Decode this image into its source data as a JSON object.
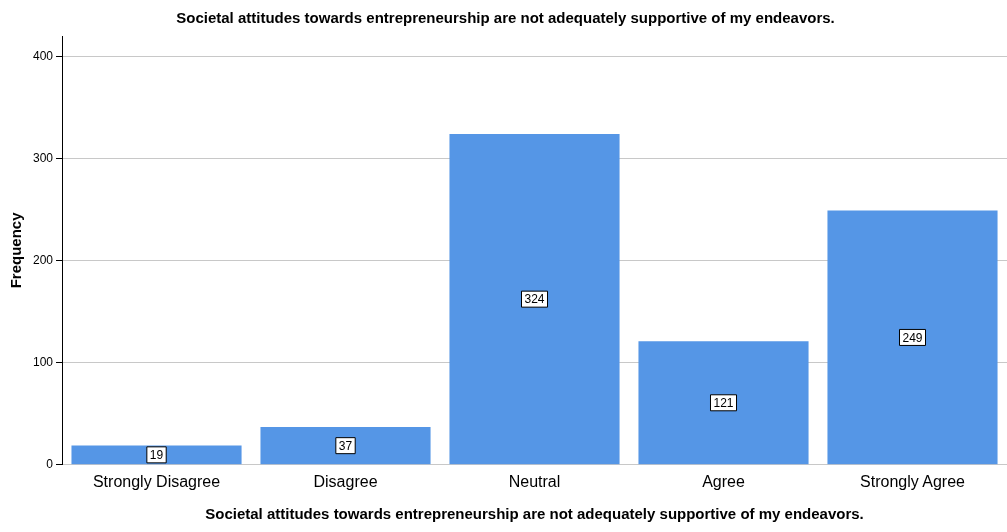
{
  "chart_data": {
    "type": "bar",
    "title": "Societal attitudes towards entrepreneurship are not adequately supportive of my endeavors.",
    "xlabel": "Societal attitudes towards entrepreneurship are not adequately supportive of my endeavors.",
    "ylabel": "Frequency",
    "categories": [
      "Strongly Disagree",
      "Disagree",
      "Neutral",
      "Agree",
      "Strongly Agree"
    ],
    "values": [
      19,
      37,
      324,
      121,
      249
    ],
    "color": "#5596e6",
    "ylim": [
      0,
      420
    ],
    "yticks": [
      0,
      100,
      200,
      300,
      400
    ],
    "grid": "y",
    "data_labels": true
  }
}
